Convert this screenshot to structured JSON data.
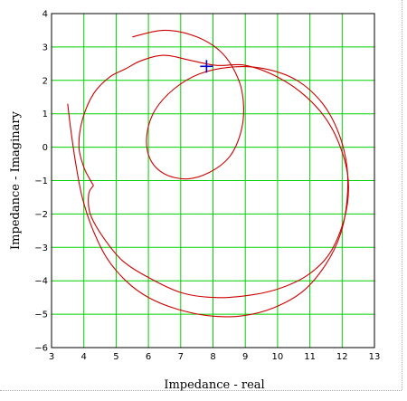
{
  "chart_data": {
    "type": "line",
    "title": "",
    "xlabel": "Impedance - real",
    "ylabel": "Impedance - Imaginary",
    "xlim": [
      3,
      13
    ],
    "ylim": [
      -6,
      4
    ],
    "xticks": [
      3,
      4,
      5,
      6,
      7,
      8,
      9,
      10,
      11,
      12,
      13
    ],
    "yticks": [
      4,
      3,
      2,
      1,
      0,
      -1,
      -2,
      -3,
      -4,
      -5,
      -6
    ],
    "xtick_labels": [
      "3",
      "4",
      "5",
      "6",
      "7",
      "8",
      "9",
      "10",
      "11",
      "12",
      "13"
    ],
    "ytick_labels": [
      "4",
      "3",
      "2",
      "1",
      "0",
      "−1",
      "−2",
      "−3",
      "−4",
      "−5",
      "−6"
    ],
    "grid": true,
    "colors": {
      "grid": "#00d000",
      "series": "#cc0000",
      "marker": "#0000cc",
      "axis": "#000000"
    },
    "series": [
      {
        "points": [
          [
            3.5,
            1.3
          ],
          [
            3.6,
            0.5
          ],
          [
            3.75,
            -0.5
          ],
          [
            3.95,
            -1.5
          ],
          [
            4.25,
            -2.4
          ],
          [
            4.7,
            -3.3
          ],
          [
            5.3,
            -4.0
          ],
          [
            6.0,
            -4.5
          ],
          [
            6.9,
            -4.85
          ],
          [
            7.9,
            -5.05
          ],
          [
            8.9,
            -5.05
          ],
          [
            9.9,
            -4.8
          ],
          [
            10.8,
            -4.3
          ],
          [
            11.5,
            -3.5
          ],
          [
            11.95,
            -2.6
          ],
          [
            12.15,
            -1.6
          ],
          [
            12.15,
            -0.6
          ],
          [
            11.9,
            0.4
          ],
          [
            11.4,
            1.3
          ],
          [
            10.6,
            2.0
          ],
          [
            9.6,
            2.35
          ],
          [
            8.6,
            2.4
          ],
          [
            7.6,
            2.2
          ],
          [
            6.8,
            1.75
          ],
          [
            6.2,
            1.1
          ],
          [
            5.95,
            0.35
          ],
          [
            6.05,
            -0.35
          ],
          [
            6.5,
            -0.8
          ],
          [
            7.2,
            -0.95
          ],
          [
            7.9,
            -0.75
          ],
          [
            8.5,
            -0.3
          ],
          [
            8.85,
            0.4
          ],
          [
            8.95,
            1.2
          ],
          [
            8.8,
            2.0
          ],
          [
            8.3,
            2.8
          ],
          [
            7.5,
            3.3
          ],
          [
            6.5,
            3.5
          ],
          [
            5.5,
            3.3
          ]
        ]
      },
      {
        "points": [
          [
            4.3,
            -1.15
          ],
          [
            4.15,
            -0.9
          ],
          [
            4.0,
            -0.6
          ],
          [
            3.85,
            0.0
          ],
          [
            3.95,
            0.8
          ],
          [
            4.3,
            1.6
          ],
          [
            4.8,
            2.1
          ],
          [
            5.3,
            2.35
          ],
          [
            5.8,
            2.6
          ],
          [
            6.5,
            2.75
          ],
          [
            7.3,
            2.6
          ],
          [
            8.1,
            2.45
          ],
          [
            9.0,
            2.45
          ],
          [
            10.0,
            2.1
          ],
          [
            10.9,
            1.5
          ],
          [
            11.6,
            0.7
          ],
          [
            12.05,
            -0.3
          ],
          [
            12.2,
            -1.2
          ],
          [
            12.05,
            -2.2
          ],
          [
            11.6,
            -3.2
          ],
          [
            10.9,
            -3.85
          ],
          [
            10.0,
            -4.25
          ],
          [
            9.0,
            -4.45
          ],
          [
            8.0,
            -4.5
          ],
          [
            7.0,
            -4.35
          ],
          [
            6.0,
            -3.9
          ],
          [
            5.2,
            -3.4
          ],
          [
            4.6,
            -2.7
          ],
          [
            4.2,
            -2.0
          ],
          [
            4.15,
            -1.4
          ],
          [
            4.3,
            -1.15
          ]
        ]
      }
    ],
    "marker": {
      "x": 7.8,
      "y": 2.42,
      "shape": "cross"
    }
  }
}
